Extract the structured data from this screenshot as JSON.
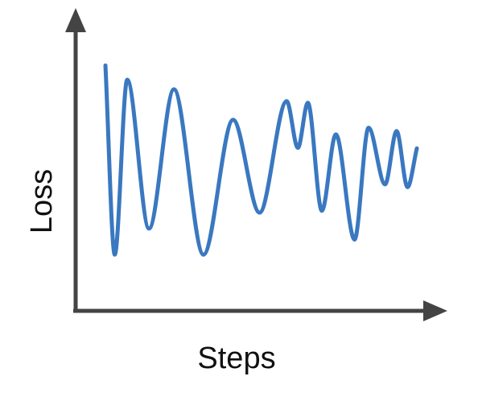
{
  "chart_data": {
    "type": "line",
    "title": "",
    "xlabel": "Steps",
    "ylabel": "Loss",
    "grid": false,
    "legend": "none",
    "axis_ticks": false,
    "series": [
      {
        "color": "#3a78c0",
        "points": [
          [
            0.0,
            0.879
          ],
          [
            0.03,
            0.19
          ],
          [
            0.07,
            0.827
          ],
          [
            0.14,
            0.285
          ],
          [
            0.22,
            0.792
          ],
          [
            0.315,
            0.19
          ],
          [
            0.41,
            0.681
          ],
          [
            0.495,
            0.343
          ],
          [
            0.582,
            0.749
          ],
          [
            0.618,
            0.579
          ],
          [
            0.65,
            0.743
          ],
          [
            0.695,
            0.35
          ],
          [
            0.74,
            0.628
          ],
          [
            0.8,
            0.245
          ],
          [
            0.845,
            0.652
          ],
          [
            0.898,
            0.446
          ],
          [
            0.935,
            0.64
          ],
          [
            0.97,
            0.436
          ],
          [
            1.0,
            0.577
          ]
        ]
      }
    ]
  }
}
